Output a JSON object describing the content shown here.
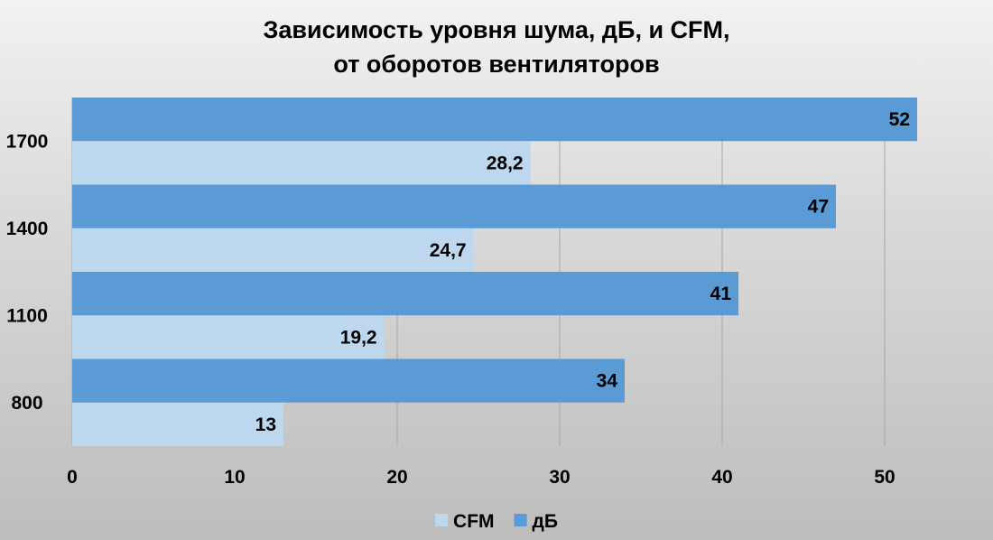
{
  "chart_data": {
    "type": "bar",
    "orientation": "horizontal",
    "title_lines": [
      "Зависимость уровня шума, дБ, и CFM,",
      "от оборотов вентиляторов"
    ],
    "categories": [
      "800",
      "1100",
      "1400",
      "1700"
    ],
    "series": [
      {
        "name": "CFM",
        "values": [
          13,
          19.2,
          24.7,
          28.2
        ],
        "labels": [
          "13",
          "19,2",
          "24,7",
          "28,2"
        ],
        "color": "#bdd7ee"
      },
      {
        "name": "дБ",
        "values": [
          34,
          41,
          47,
          52
        ],
        "labels": [
          "34",
          "41",
          "47",
          "52"
        ],
        "color": "#5b9bd5"
      }
    ],
    "xlim": [
      0,
      55
    ],
    "x_ticks": [
      0,
      10,
      20,
      30,
      40,
      50
    ],
    "grid": true,
    "legend_position": "bottom",
    "xlabel": "",
    "ylabel": ""
  }
}
